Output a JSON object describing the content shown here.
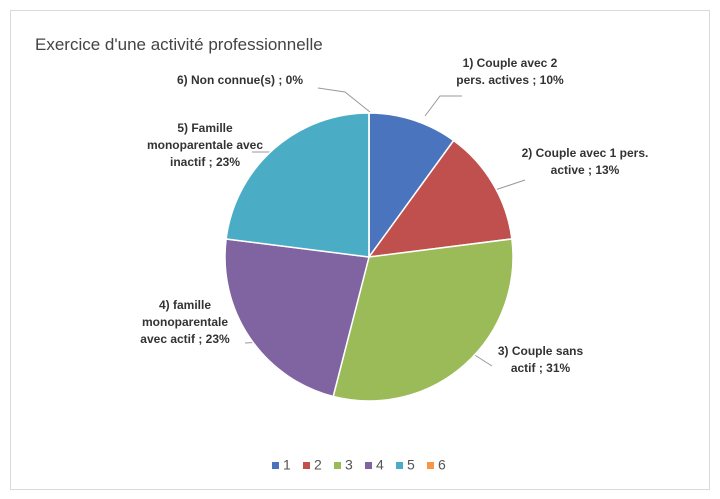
{
  "chart_data": {
    "type": "pie",
    "title": "Exercice d'une activité professionnelle",
    "categories": [
      "1",
      "2",
      "3",
      "4",
      "5",
      "6"
    ],
    "values": [
      10,
      13,
      31,
      23,
      23,
      0
    ],
    "value_labels": [
      "1) Couple avec 2 pers. actives ; 10%",
      "2) Couple avec 1 pers. active ; 13%",
      "3) Couple sans actif ; 31%",
      "4) famille monoparentale avec actif ; 23%",
      "5) Famille monoparentale avec inactif ; 23%",
      "6) Non connue(s) ; 0%"
    ],
    "colors": [
      "#4a74bd",
      "#c0504d",
      "#9bbb59",
      "#8064a2",
      "#4bacc6",
      "#f79646"
    ],
    "legend": "bottom"
  }
}
